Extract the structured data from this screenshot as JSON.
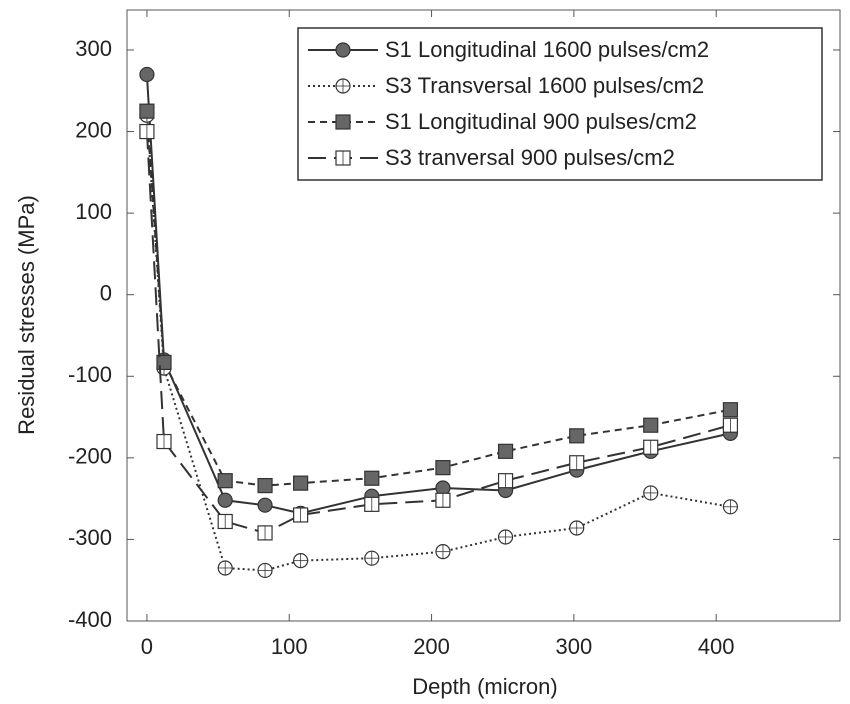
{
  "chart_data": {
    "type": "line",
    "x_label": "Depth (micron)",
    "y_label": "Residual stresses (MPa)",
    "xlim": [
      -14,
      487
    ],
    "ylim": [
      -400,
      349
    ],
    "xticks": [
      0,
      100,
      200,
      300,
      400
    ],
    "yticks": [
      -400,
      -300,
      -200,
      -100,
      0,
      100,
      200,
      300
    ],
    "grid": false,
    "legend": "upper right",
    "series": [
      {
        "name": "S1 Longitudinal 1600 pulses/cm2",
        "color": "#333333",
        "line_style": "solid",
        "marker": "circle-filled",
        "x": [
          0,
          12,
          55,
          83,
          108,
          158,
          208,
          252,
          302,
          354,
          410
        ],
        "values": [
          270,
          -80,
          -252,
          -258,
          -268,
          -247,
          -237,
          -240,
          -215,
          -192,
          -170
        ]
      },
      {
        "name": "S3 Transversal 1600 pulses/cm2",
        "color": "#333333",
        "line_style": "dotted",
        "marker": "circle-open",
        "x": [
          0,
          12,
          55,
          83,
          108,
          158,
          208,
          252,
          302,
          354,
          410
        ],
        "values": [
          220,
          -90,
          -335,
          -338,
          -326,
          -323,
          -315,
          -297,
          -286,
          -243,
          -260
        ]
      },
      {
        "name": "S1 Longitudinal 900 pulses/cm2",
        "color": "#333333",
        "line_style": "dashed",
        "marker": "square-filled",
        "x": [
          0,
          12,
          55,
          83,
          108,
          158,
          208,
          252,
          302,
          354,
          410
        ],
        "values": [
          225,
          -83,
          -228,
          -234,
          -231,
          -225,
          -212,
          -192,
          -173,
          -160,
          -141
        ]
      },
      {
        "name": "S3 tranversal 900 pulses/cm2",
        "color": "#333333",
        "line_style": "long-dashed",
        "marker": "square-open",
        "x": [
          0,
          12,
          55,
          83,
          108,
          158,
          208,
          252,
          302,
          354,
          410
        ],
        "values": [
          200,
          -180,
          -278,
          -292,
          -270,
          -257,
          -252,
          -228,
          -206,
          -187,
          -160
        ]
      }
    ]
  }
}
